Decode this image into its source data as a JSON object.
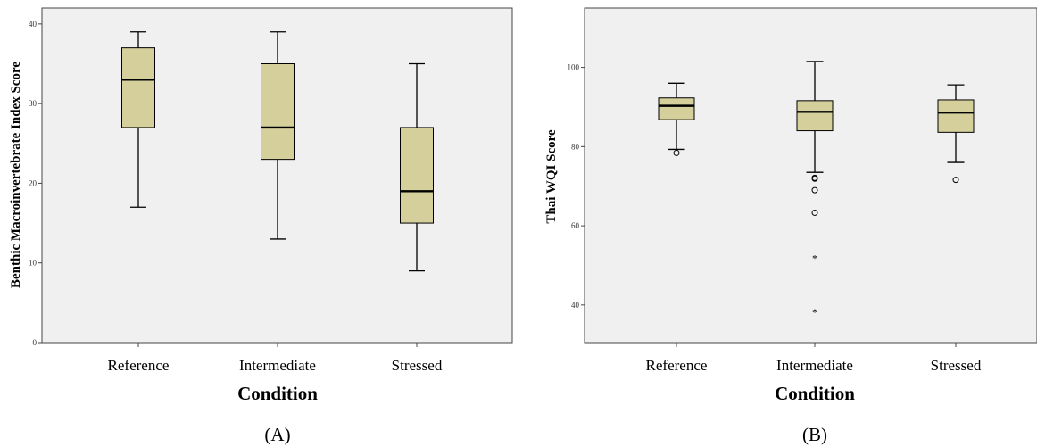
{
  "colors": {
    "plot_bg": "#f0f0f0",
    "box_fill": "#d4cf9b",
    "line": "#000000",
    "frame": "#444444"
  },
  "chart_data": [
    {
      "type": "box",
      "panel_label": "(A)",
      "xlabel": "Condition",
      "ylabel": "Benthic Macroinvertebrate Index Score",
      "ylim": [
        0,
        42
      ],
      "yticks": [
        0,
        10,
        20,
        30,
        40
      ],
      "grid": false,
      "categories": [
        "Reference",
        "Intermediate",
        "Stressed"
      ],
      "boxes": [
        {
          "whisker_low": 17,
          "q1": 27,
          "median": 33,
          "q3": 37,
          "whisker_high": 39,
          "outliers": [],
          "extremes": []
        },
        {
          "whisker_low": 13,
          "q1": 23,
          "median": 27,
          "q3": 35,
          "whisker_high": 39,
          "outliers": [],
          "extremes": []
        },
        {
          "whisker_low": 9,
          "q1": 15,
          "median": 19,
          "q3": 27,
          "whisker_high": 35,
          "outliers": [],
          "extremes": []
        }
      ]
    },
    {
      "type": "box",
      "panel_label": "(B)",
      "xlabel": "Condition",
      "ylabel": "Thai WQI Score",
      "ylim": [
        30.5,
        115
      ],
      "yticks": [
        40,
        60,
        80,
        100
      ],
      "grid": false,
      "categories": [
        "Reference",
        "Intermediate",
        "Stressed"
      ],
      "boxes": [
        {
          "whisker_low": 79.3,
          "q1": 86.8,
          "median": 90.3,
          "q3": 92.3,
          "whisker_high": 96,
          "outliers": [
            78.4
          ],
          "extremes": []
        },
        {
          "whisker_low": 73.5,
          "q1": 84,
          "median": 88.8,
          "q3": 91.6,
          "whisker_high": 101.5,
          "outliers": [
            72.1,
            71.9,
            69,
            63.3
          ],
          "extremes": [
            52,
            38.4
          ]
        },
        {
          "whisker_low": 76,
          "q1": 83.6,
          "median": 88.6,
          "q3": 91.8,
          "whisker_high": 95.6,
          "outliers": [
            71.6
          ],
          "extremes": []
        }
      ]
    }
  ]
}
